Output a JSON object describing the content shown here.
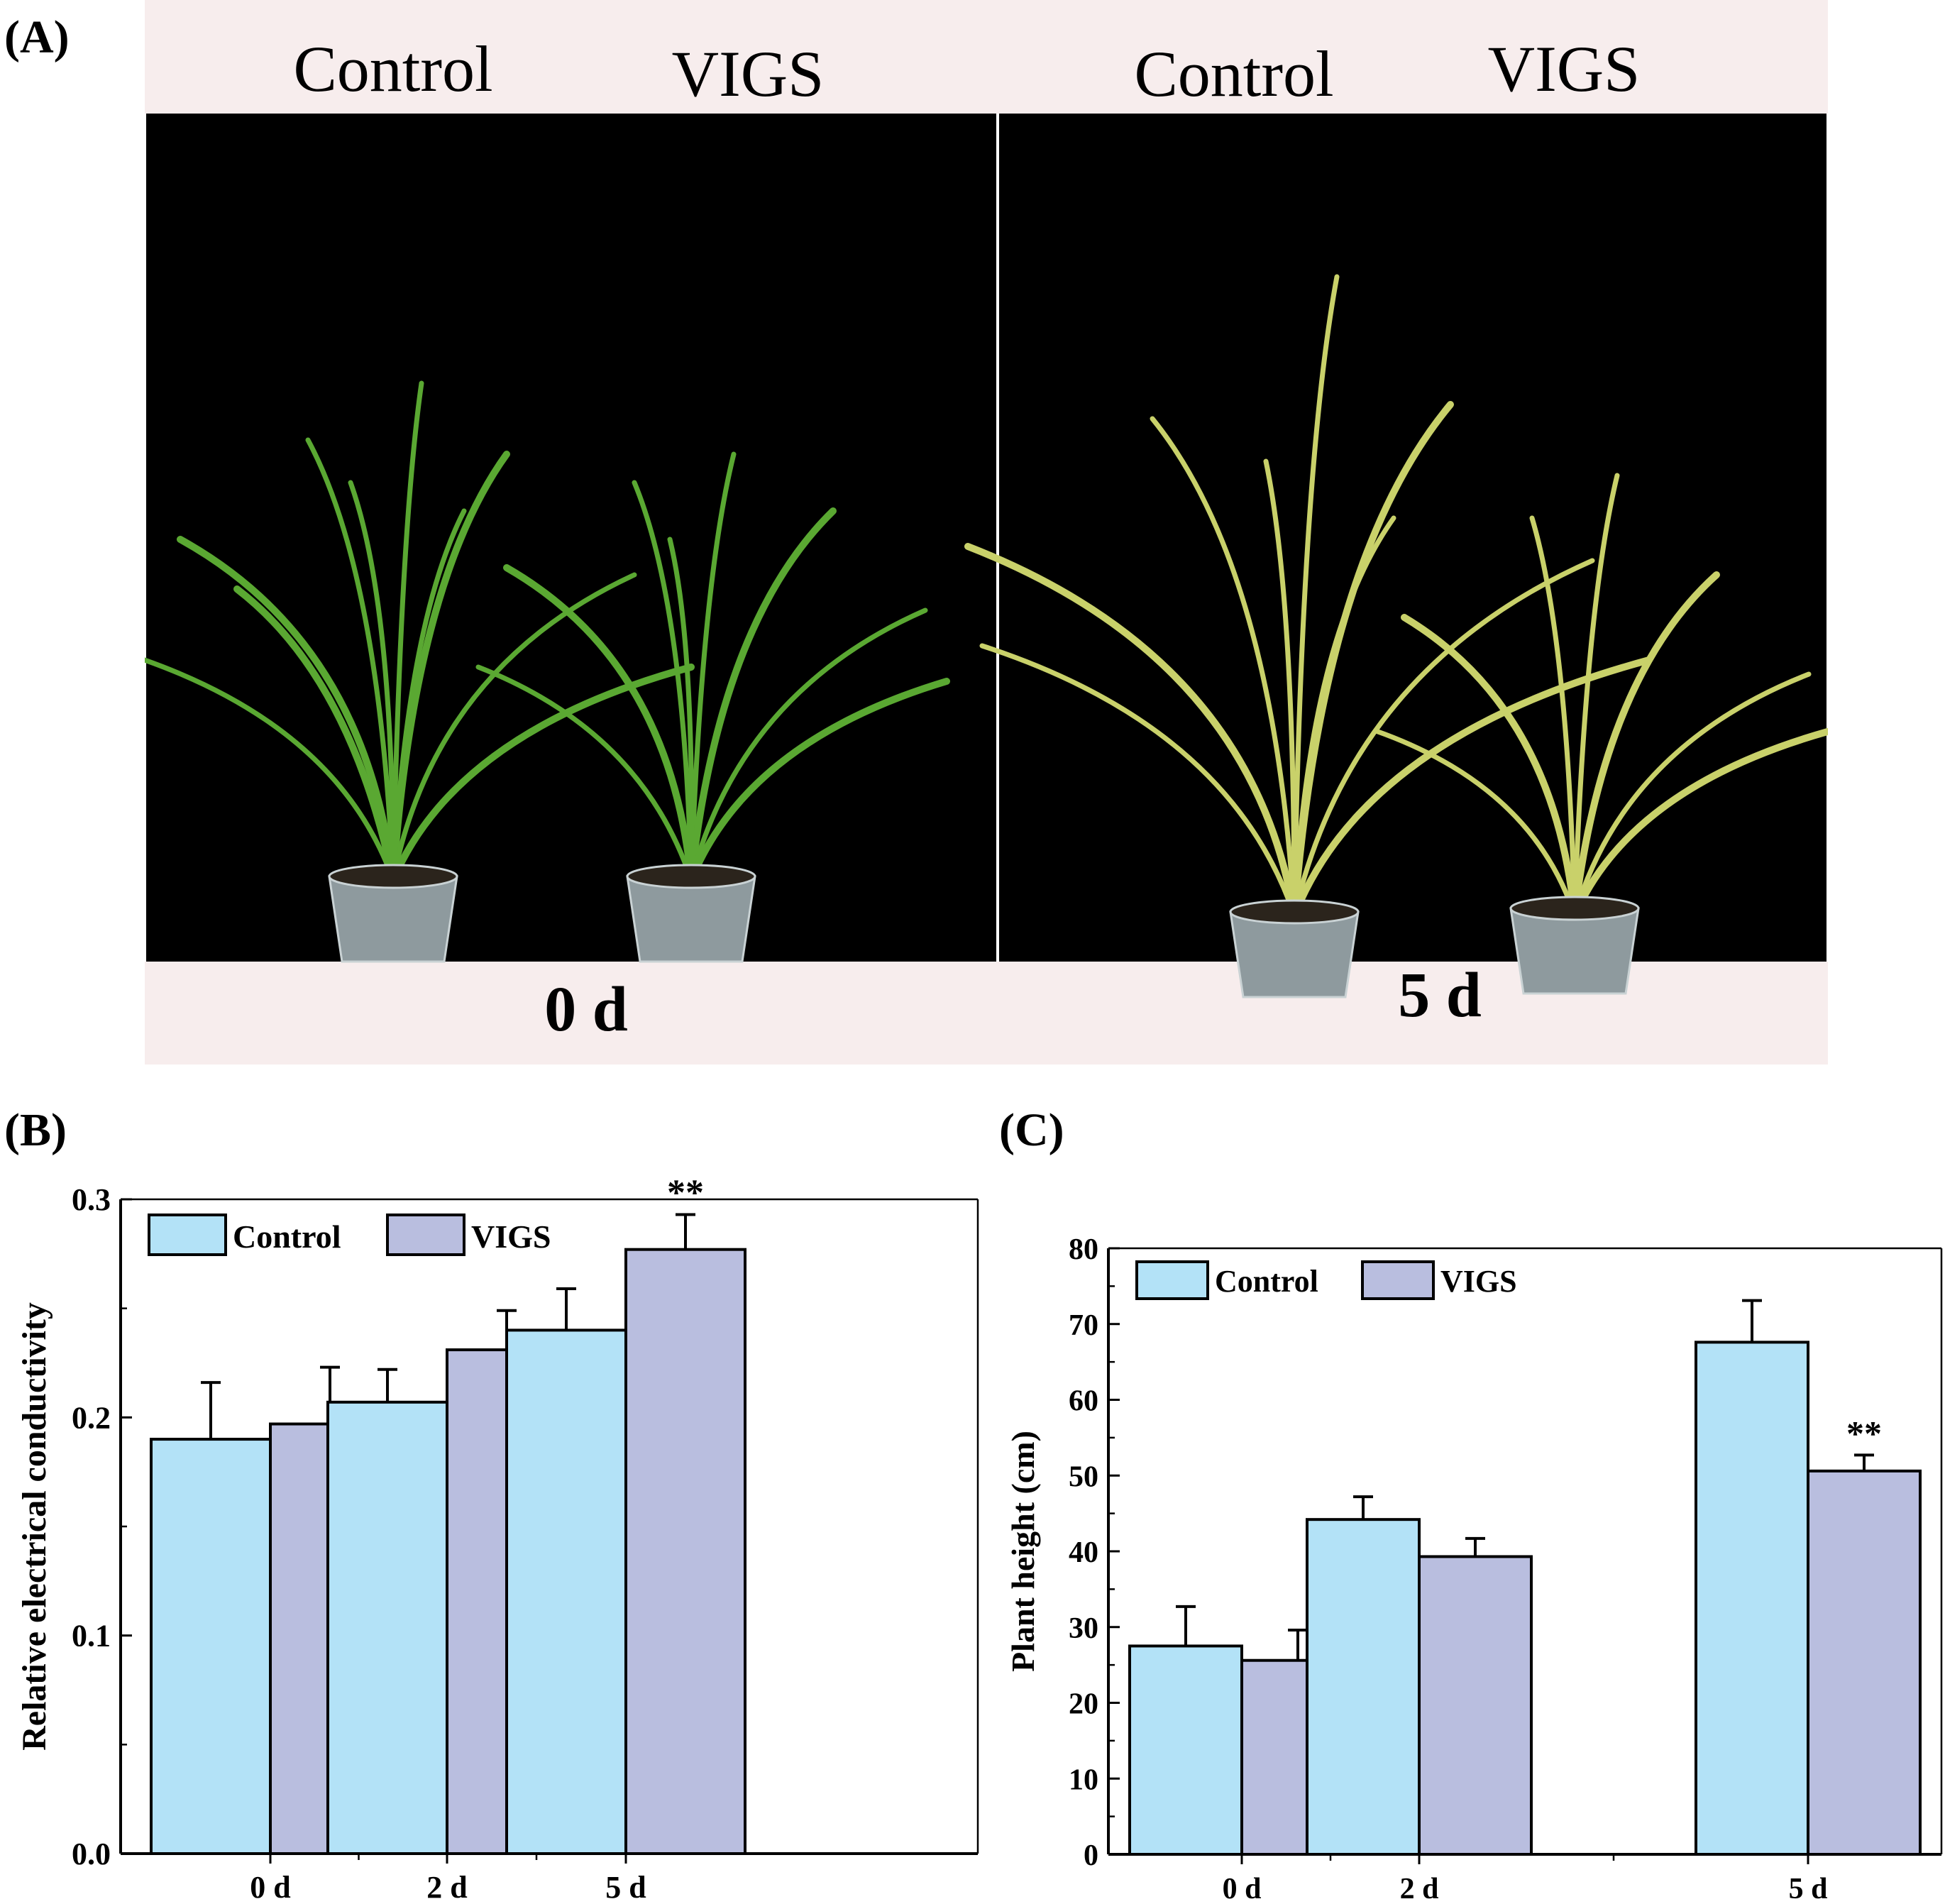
{
  "panel_labels": {
    "a": "(A)",
    "b": "(B)",
    "c": "(C)"
  },
  "photo": {
    "left_header": {
      "control": "Control",
      "vigs": "VIGS"
    },
    "right_header": {
      "control": "Control",
      "vigs": "VIGS"
    },
    "left_day": "0 d",
    "right_day": "5 d",
    "band_color": "#f7eded",
    "background_color": "#000000",
    "leaf_fresh_color": "#5aa832",
    "leaf_dry_color": "#c9d16a"
  },
  "colors": {
    "control": "#b3e2f7",
    "vigs": "#b9bedf"
  },
  "chart_data": [
    {
      "type": "bar",
      "panel": "B",
      "categories": [
        "0 d",
        "2 d",
        "5 d"
      ],
      "series": [
        {
          "name": "Control",
          "values": [
            0.19,
            0.207,
            0.24
          ],
          "errors": [
            0.026,
            0.015,
            0.019
          ]
        },
        {
          "name": "VIGS",
          "values": [
            0.197,
            0.231,
            0.277
          ],
          "errors": [
            0.026,
            0.018,
            0.016
          ]
        }
      ],
      "significance": [
        {
          "category": "5 d",
          "series": "VIGS",
          "label": "**"
        }
      ],
      "xlabel": "",
      "ylabel": "Relative electrical conductivity",
      "ylim": [
        0,
        0.3
      ],
      "yticks": [
        "0.0",
        "0.1",
        "0.2",
        "0.3"
      ],
      "legend": "top-left"
    },
    {
      "type": "bar",
      "panel": "C",
      "categories": [
        "0 d",
        "2 d",
        "5 d"
      ],
      "series": [
        {
          "name": "Control",
          "values": [
            27.5,
            44.2,
            67.6
          ],
          "errors": [
            5.2,
            3.0,
            5.5
          ]
        },
        {
          "name": "VIGS",
          "values": [
            25.6,
            39.3,
            50.6
          ],
          "errors": [
            4.0,
            2.4,
            2.1
          ]
        }
      ],
      "significance": [
        {
          "category": "5 d",
          "series": "VIGS",
          "label": "**"
        }
      ],
      "xlabel": "",
      "ylabel": "Plant height (cm)",
      "ylim": [
        0,
        80
      ],
      "yticks": [
        "0",
        "10",
        "20",
        "30",
        "40",
        "50",
        "60",
        "70",
        "80"
      ],
      "legend": "top-left"
    }
  ]
}
